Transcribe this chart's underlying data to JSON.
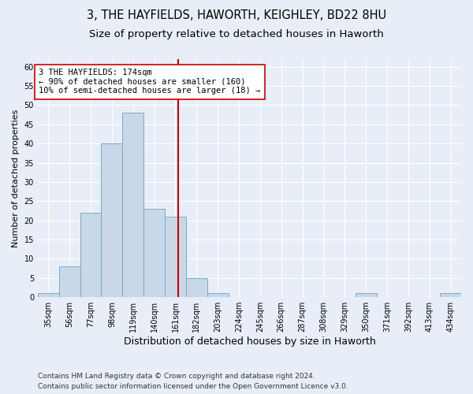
{
  "title": "3, THE HAYFIELDS, HAWORTH, KEIGHLEY, BD22 8HU",
  "subtitle": "Size of property relative to detached houses in Haworth",
  "xlabel": "Distribution of detached houses by size in Haworth",
  "ylabel": "Number of detached properties",
  "bar_edges": [
    35,
    56,
    77,
    98,
    119,
    140,
    161,
    182,
    203,
    224,
    245,
    266,
    287,
    308,
    329,
    350,
    371,
    392,
    413,
    434,
    455
  ],
  "bar_heights": [
    1,
    8,
    22,
    40,
    48,
    23,
    21,
    5,
    1,
    0,
    0,
    0,
    0,
    0,
    0,
    1,
    0,
    0,
    0,
    1
  ],
  "bar_color": "#c8d8e8",
  "bar_edge_color": "#7aaac8",
  "vline_x": 174,
  "vline_color": "#cc0000",
  "annotation_text": "3 THE HAYFIELDS: 174sqm\n← 90% of detached houses are smaller (160)\n10% of semi-detached houses are larger (18) →",
  "annotation_box_color": "#ffffff",
  "annotation_box_edge": "#cc0000",
  "ylim": [
    0,
    62
  ],
  "yticks": [
    0,
    5,
    10,
    15,
    20,
    25,
    30,
    35,
    40,
    45,
    50,
    55,
    60
  ],
  "background_color": "#e8eef8",
  "plot_background": "#e8eef8",
  "footer_line1": "Contains HM Land Registry data © Crown copyright and database right 2024.",
  "footer_line2": "Contains public sector information licensed under the Open Government Licence v3.0.",
  "title_fontsize": 10.5,
  "subtitle_fontsize": 9.5,
  "xlabel_fontsize": 9,
  "ylabel_fontsize": 8,
  "tick_fontsize": 7,
  "footer_fontsize": 6.5,
  "annot_fontsize": 7.5
}
